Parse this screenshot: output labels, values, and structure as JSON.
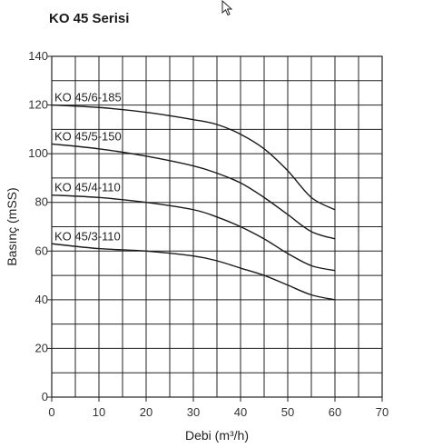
{
  "title": "KO 45 Serisi",
  "cursor_icon": "mouse-pointer-icon",
  "chart_data": {
    "type": "line",
    "title": "KO 45 Serisi",
    "xlabel": "Debi (m³/h)",
    "ylabel": "Basınç (mSS)",
    "xlim": [
      0,
      70
    ],
    "ylim": [
      0,
      140
    ],
    "x_ticks": [
      0,
      10,
      20,
      30,
      40,
      50,
      60,
      70
    ],
    "y_ticks": [
      0,
      20,
      40,
      60,
      80,
      100,
      120,
      140
    ],
    "x_tick_labels": [
      "0",
      "10",
      "20",
      "30",
      "40",
      "50",
      "60",
      "70"
    ],
    "y_tick_labels": [
      "0",
      "20",
      "40",
      "60",
      "80",
      "100",
      "120",
      "140"
    ],
    "grid": true,
    "grid_x_step": 5,
    "grid_y_step": 10,
    "legend": "none",
    "line_color": "#1a1a1a",
    "series": [
      {
        "name": "KO 45/6-185",
        "x": [
          0,
          10,
          20,
          30,
          35,
          40,
          45,
          50,
          55,
          60
        ],
        "y": [
          120,
          119,
          117,
          114,
          112,
          108,
          102,
          93,
          82,
          77
        ]
      },
      {
        "name": "KO 45/5-150",
        "x": [
          0,
          10,
          20,
          30,
          35,
          40,
          45,
          50,
          55,
          60
        ],
        "y": [
          104,
          102,
          99,
          95,
          92,
          88,
          82,
          75,
          68,
          65
        ]
      },
      {
        "name": "KO 45/4-110",
        "x": [
          0,
          10,
          20,
          30,
          35,
          40,
          45,
          50,
          55,
          60
        ],
        "y": [
          83,
          82,
          80,
          77,
          74,
          70,
          65,
          59,
          54,
          52
        ]
      },
      {
        "name": "KO 45/3-110",
        "x": [
          0,
          10,
          20,
          30,
          35,
          40,
          45,
          50,
          55,
          60
        ],
        "y": [
          63,
          61,
          60,
          58,
          56,
          53,
          50,
          46,
          42,
          40
        ]
      }
    ]
  }
}
